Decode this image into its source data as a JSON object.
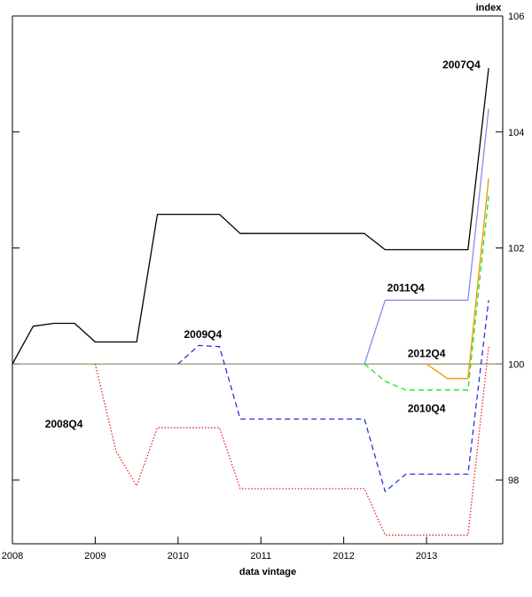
{
  "chart_data": {
    "type": "line",
    "xlabel": "data vintage",
    "ylabel": "",
    "y_unit": "index",
    "xlim": [
      2008.0,
      2013.92
    ],
    "ylim": [
      96.9,
      106.0
    ],
    "x_ticks": [
      "2008",
      "2009",
      "2010",
      "2011",
      "2012",
      "2013"
    ],
    "y_ticks": [
      "98",
      "100",
      "102",
      "104",
      "106"
    ],
    "reference_line": {
      "y": 100,
      "color": "#888866"
    },
    "grid": false,
    "series": [
      {
        "name": "2007Q4",
        "color": "#000000",
        "dash": "solid",
        "x": [
          2008.0,
          2008.25,
          2008.5,
          2008.75,
          2009.0,
          2009.25,
          2009.5,
          2009.75,
          2010.0,
          2010.25,
          2010.5,
          2010.75,
          2011.0,
          2011.25,
          2011.5,
          2011.75,
          2012.0,
          2012.25,
          2012.5,
          2012.75,
          2013.0,
          2013.25,
          2013.5,
          2013.75
        ],
        "y": [
          100.0,
          100.65,
          100.7,
          100.7,
          100.38,
          100.38,
          100.38,
          102.58,
          102.58,
          102.58,
          102.58,
          102.25,
          102.25,
          102.25,
          102.25,
          102.25,
          102.25,
          102.25,
          101.97,
          101.97,
          101.97,
          101.97,
          101.97,
          105.1
        ]
      },
      {
        "name": "2008Q4",
        "color": "#ee2222",
        "dash": "dot",
        "x": [
          2009.0,
          2009.25,
          2009.5,
          2009.75,
          2010.0,
          2010.25,
          2010.5,
          2010.75,
          2011.0,
          2011.25,
          2011.5,
          2011.75,
          2012.0,
          2012.25,
          2012.5,
          2012.75,
          2013.0,
          2013.25,
          2013.5,
          2013.75
        ],
        "y": [
          100.0,
          98.5,
          97.9,
          98.9,
          98.9,
          98.9,
          98.9,
          97.85,
          97.85,
          97.85,
          97.85,
          97.85,
          97.85,
          97.85,
          97.05,
          97.05,
          97.05,
          97.05,
          97.05,
          100.3
        ]
      },
      {
        "name": "2009Q4",
        "color": "#2233dd",
        "dash": "dash",
        "x": [
          2010.0,
          2010.25,
          2010.5,
          2010.75,
          2011.0,
          2011.25,
          2011.5,
          2011.75,
          2012.0,
          2012.25,
          2012.5,
          2012.75,
          2013.0,
          2013.25,
          2013.5,
          2013.75
        ],
        "y": [
          100.0,
          100.32,
          100.3,
          99.05,
          99.05,
          99.05,
          99.05,
          99.05,
          99.05,
          99.05,
          97.8,
          98.1,
          98.1,
          98.1,
          98.1,
          101.1
        ]
      },
      {
        "name": "2010Q4",
        "color": "#22dd22",
        "dash": "dash",
        "x": [
          2012.25,
          2012.5,
          2012.75,
          2013.0,
          2013.25,
          2013.5,
          2013.75
        ],
        "y": [
          100.0,
          99.7,
          99.55,
          99.55,
          99.55,
          99.55,
          102.9
        ]
      },
      {
        "name": "2011Q4",
        "color": "#8888ee",
        "dash": "solid",
        "x": [
          2012.25,
          2012.5,
          2012.75,
          2013.0,
          2013.25,
          2013.5,
          2013.75
        ],
        "y": [
          100.0,
          101.1,
          101.1,
          101.1,
          101.1,
          101.1,
          104.4
        ]
      },
      {
        "name": "2012Q4",
        "color": "#ee9900",
        "dash": "solid",
        "x": [
          2013.0,
          2013.25,
          2013.5,
          2013.75
        ],
        "y": [
          100.0,
          99.75,
          99.75,
          103.2
        ]
      }
    ],
    "annotations": [
      {
        "text": "2007Q4",
        "x": 2013.65,
        "y": 105.1,
        "anchor": "end"
      },
      {
        "text": "2011Q4",
        "x": 2012.75,
        "y": 101.25,
        "anchor": "middle"
      },
      {
        "text": "2009Q4",
        "x": 2010.3,
        "y": 100.45,
        "anchor": "middle"
      },
      {
        "text": "2012Q4",
        "x": 2013.0,
        "y": 100.12,
        "anchor": "middle"
      },
      {
        "text": "2010Q4",
        "x": 2013.0,
        "y": 99.17,
        "anchor": "middle"
      },
      {
        "text": "2008Q4",
        "x": 2008.85,
        "y": 98.9,
        "anchor": "end"
      }
    ]
  }
}
